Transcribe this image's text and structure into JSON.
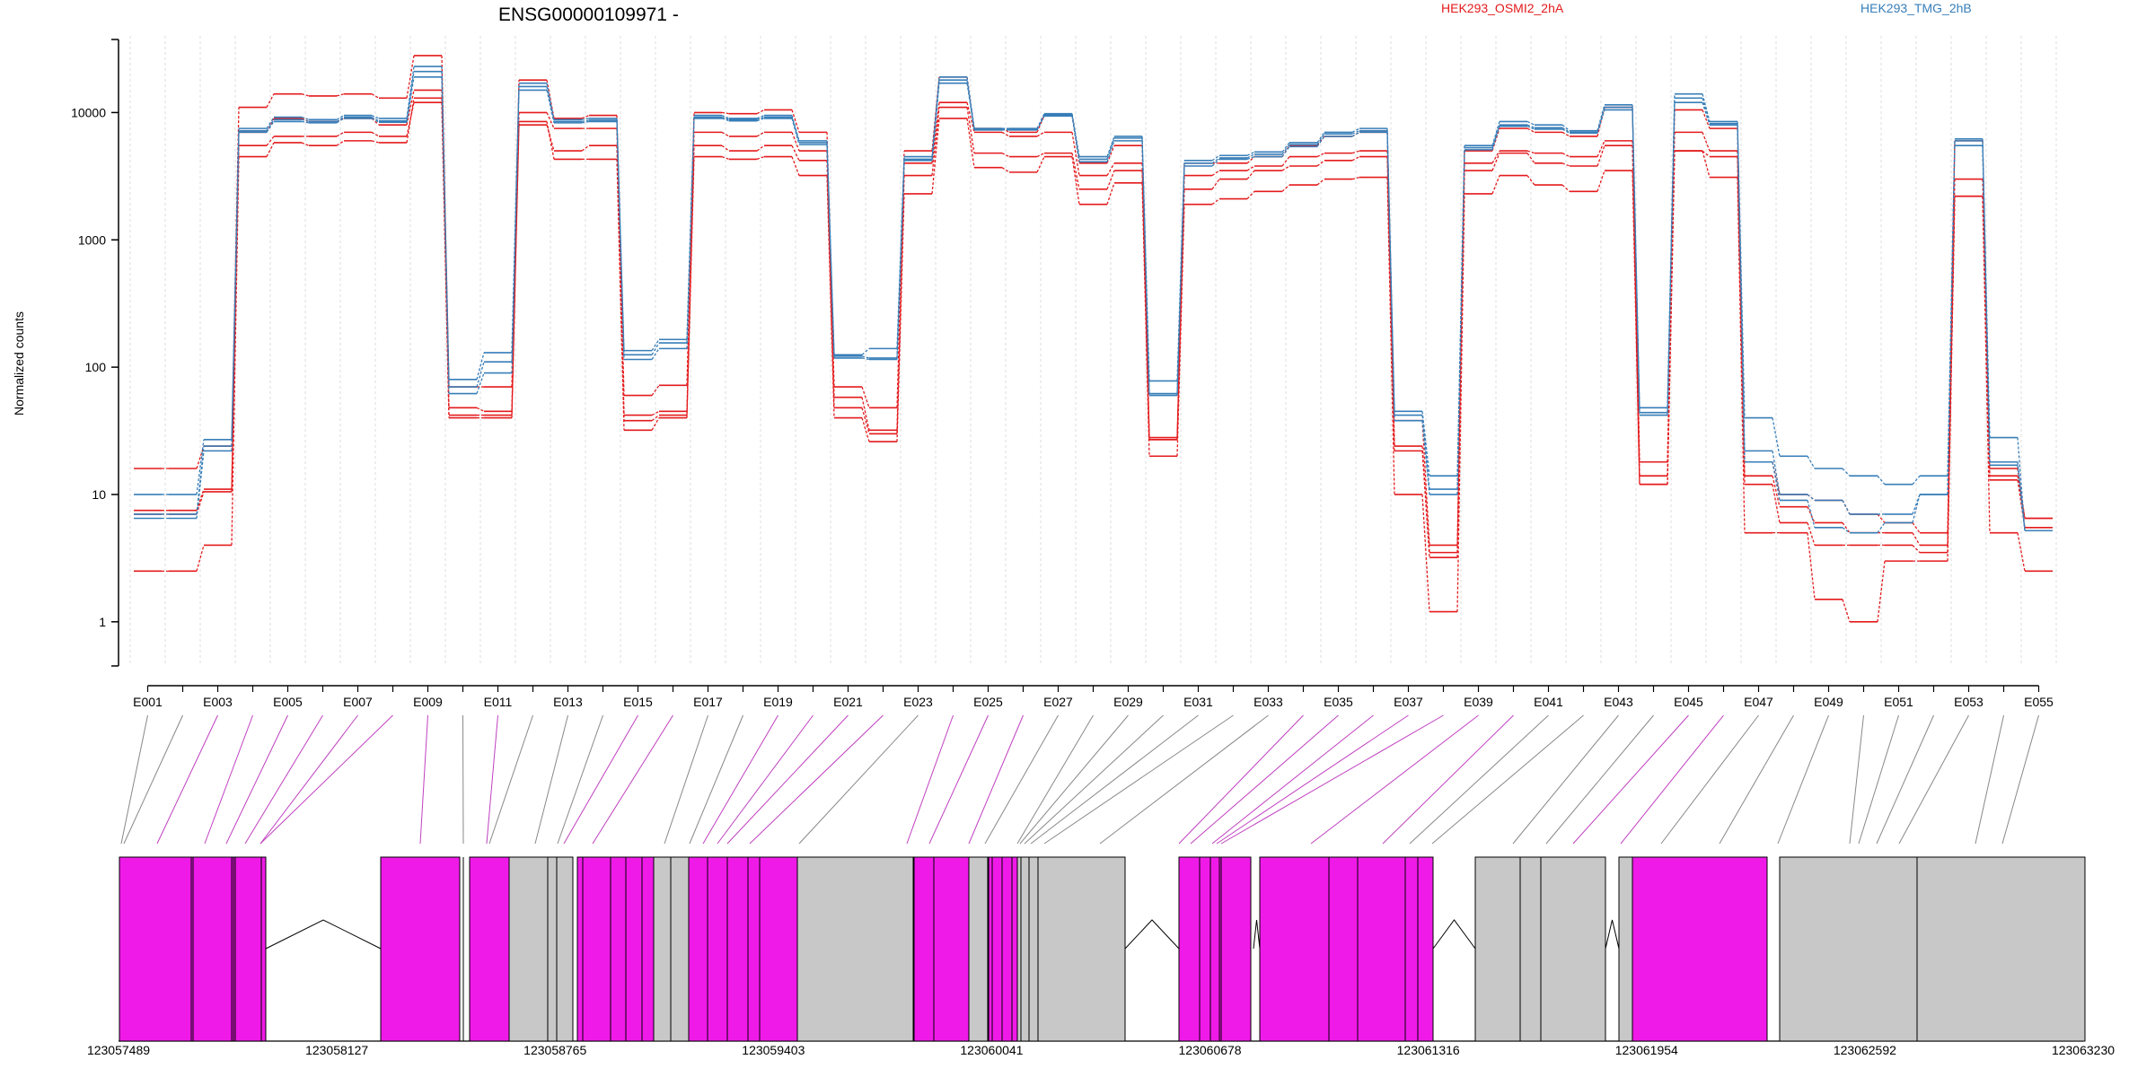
{
  "chart_data": {
    "type": "line",
    "title": "ENSG00000109971 -",
    "xlabel": "",
    "ylabel": "Normalized counts",
    "yscale": "log",
    "y_ticks": [
      1,
      10,
      100,
      1000,
      10000
    ],
    "y_tick_labels": [
      "1",
      "10",
      "100",
      "1000",
      "10000"
    ],
    "ylim": [
      0.45,
      40000
    ],
    "categories": [
      "E001",
      "E002",
      "E003",
      "E004",
      "E005",
      "E006",
      "E007",
      "E008",
      "E009",
      "E010",
      "E011",
      "E012",
      "E013",
      "E014",
      "E015",
      "E016",
      "E017",
      "E018",
      "E019",
      "E020",
      "E021",
      "E022",
      "E023",
      "E024",
      "E025",
      "E026",
      "E027",
      "E028",
      "E029",
      "E030",
      "E031",
      "E032",
      "E033",
      "E034",
      "E035",
      "E036",
      "E037",
      "E038",
      "E039",
      "E040",
      "E041",
      "E042",
      "E043",
      "E044",
      "E045",
      "E046",
      "E047",
      "E048",
      "E049",
      "E050",
      "E051",
      "E052",
      "E053",
      "E054",
      "E055"
    ],
    "x_tick_labels": [
      "E001",
      "E003",
      "E005",
      "E007",
      "E009",
      "E011",
      "E013",
      "E015",
      "E017",
      "E019",
      "E021",
      "E023",
      "E025",
      "E027",
      "E029",
      "E031",
      "E033",
      "E035",
      "E037",
      "E039",
      "E041",
      "E043",
      "E045",
      "E047",
      "E049",
      "E051",
      "E053",
      "E055"
    ],
    "legend": [
      {
        "name": "HEK293_OSMI2_2hA",
        "color": "#e41a1c"
      },
      {
        "name": "HEK293_TMG_2hB",
        "color": "#377eb8"
      }
    ],
    "series": [
      {
        "name": "HEK293_OSMI2_2hA",
        "color": "#e41a1c",
        "values": [
          16,
          16,
          24,
          11000.0,
          14000.0,
          13500.0,
          14000.0,
          13000.0,
          28000.0,
          70,
          70,
          18000.0,
          9000.0,
          9500.0,
          60,
          72,
          10000.0,
          9800.0,
          10500.0,
          7000.0,
          70,
          48,
          5000.0,
          19000.0,
          7500.0,
          7000.0,
          9500.0,
          4000.0,
          5500.0,
          28,
          4000.0,
          4000.0,
          4500.0,
          5500.0,
          6500.0,
          7000.0,
          38,
          4,
          5000.0,
          7500.0,
          7000.0,
          6500.0,
          11000.0,
          18,
          10500.0,
          7500.0,
          18,
          10,
          9,
          7,
          6,
          5,
          6000.0,
          16,
          6.5
        ]
      },
      {
        "name": "HEK293_OSMI2_2hA",
        "color": "#e41a1c",
        "values": [
          7.5,
          7.5,
          11,
          7000.0,
          9000.0,
          8500.0,
          9000.0,
          8000.0,
          15000.0,
          48,
          45,
          10000.0,
          7500.0,
          7500.0,
          42,
          45,
          7000.0,
          6500.0,
          7000.0,
          5000.0,
          58,
          32,
          4000.0,
          12000.0,
          7000.0,
          6500.0,
          7000.0,
          3200.0,
          4000.0,
          27,
          3200.0,
          3500.0,
          3800.0,
          4500.0,
          4800.0,
          5000.0,
          24,
          3.5,
          4000.0,
          5000.0,
          4800.0,
          4500.0,
          6000.0,
          14,
          7000.0,
          5000.0,
          14,
          8,
          6,
          5,
          5,
          4,
          3000.0,
          14,
          6.5
        ]
      },
      {
        "name": "HEK293_OSMI2_2hA",
        "color": "#e41a1c",
        "values": [
          7,
          7,
          10.5,
          5500.0,
          6500.0,
          6500.0,
          7000.0,
          6500.0,
          12000.0,
          42,
          42,
          8000.0,
          5000.0,
          5500.0,
          38,
          42,
          5500.0,
          5000.0,
          5500.0,
          4200.0,
          48,
          30,
          3200.0,
          11000.0,
          4800.0,
          4500.0,
          4800.0,
          2500.0,
          3500.0,
          27,
          2500.0,
          3000.0,
          3500.0,
          3800.0,
          4200.0,
          4500.0,
          22,
          3.2,
          3500.0,
          4800.0,
          4000.0,
          3800.0,
          5500.0,
          12,
          5000.0,
          4500.0,
          12,
          6,
          4,
          4,
          4,
          3.5,
          2200.0,
          13,
          5.5
        ]
      },
      {
        "name": "HEK293_OSMI2_2hA",
        "color": "#e41a1c",
        "values": [
          2.5,
          2.5,
          4,
          4500.0,
          5800.0,
          5500.0,
          6000.0,
          5800.0,
          13000.0,
          40,
          40,
          8500.0,
          4300.0,
          4300.0,
          32,
          40,
          4500.0,
          4300.0,
          4500.0,
          3200.0,
          40,
          26,
          2300.0,
          9000.0,
          3700.0,
          3400.0,
          4500.0,
          1900.0,
          2800.0,
          20,
          1900.0,
          2100.0,
          2400.0,
          2700.0,
          3000.0,
          3100.0,
          10,
          1.2,
          2300.0,
          3200.0,
          2700.0,
          2400.0,
          3500.0,
          12,
          5000.0,
          3100.0,
          5,
          5,
          1.5,
          1,
          3,
          3,
          2200.0,
          5,
          2.5
        ]
      },
      {
        "name": "HEK293_TMG_2hB",
        "color": "#377eb8",
        "values": [
          10,
          10,
          27,
          7500.0,
          9200.0,
          8800.0,
          9500.0,
          9000.0,
          23000.0,
          80,
          130,
          17000.0,
          8800.0,
          9000.0,
          135,
          165,
          9500.0,
          9000.0,
          9500.0,
          6000.0,
          125,
          140,
          4500.0,
          19000.0,
          7500.0,
          7500.0,
          9800.0,
          4500.0,
          6500.0,
          78,
          4200.0,
          4600.0,
          4900.0,
          5800.0,
          7000.0,
          7500.0,
          45,
          14,
          5500.0,
          8500.0,
          8000.0,
          7200.0,
          11500.0,
          48,
          14000.0,
          8500.0,
          40,
          20,
          16,
          14,
          12,
          14,
          6200.0,
          28,
          5.2
        ]
      },
      {
        "name": "HEK293_TMG_2hB",
        "color": "#377eb8",
        "values": [
          7,
          7,
          24,
          7200.0,
          8800.0,
          8500.0,
          9200.0,
          8600.0,
          21000.0,
          70,
          110,
          16000.0,
          8500.0,
          8700.0,
          125,
          155,
          9200.0,
          8800.0,
          9200.0,
          5800.0,
          122,
          118,
          4300.0,
          18000.0,
          7400.0,
          7400.0,
          9600.0,
          4300.0,
          6300.0,
          62,
          4000.0,
          4400.0,
          4700.0,
          5600.0,
          6800.0,
          7200.0,
          42,
          11,
          5300.0,
          8000.0,
          7600.0,
          7000.0,
          11000.0,
          44,
          13000.0,
          8200.0,
          22,
          10,
          9,
          7,
          7,
          10,
          6000.0,
          18,
          5.2
        ]
      },
      {
        "name": "HEK293_TMG_2hB",
        "color": "#377eb8",
        "values": [
          6.5,
          6.5,
          22,
          7000.0,
          8500.0,
          8300.0,
          9000.0,
          8400.0,
          19000.0,
          62,
          90,
          15000.0,
          8300.0,
          8500.0,
          115,
          140,
          9000.0,
          8600.0,
          9000.0,
          5600.0,
          118,
          115,
          4200.0,
          17000.0,
          7300.0,
          7300.0,
          9400.0,
          4100.0,
          6000.0,
          60,
          3800.0,
          4300.0,
          4500.0,
          5400.0,
          6500.0,
          7000.0,
          38,
          10,
          5100.0,
          7800.0,
          7400.0,
          6900.0,
          10500.0,
          42,
          12000.0,
          8000.0,
          18,
          9,
          5.5,
          5,
          6,
          10,
          5500.0,
          17,
          5.2
        ]
      }
    ],
    "exon_connectors": [
      {
        "exon": "E001",
        "color": "gray"
      },
      {
        "exon": "E002",
        "color": "gray"
      },
      {
        "exon": "E003",
        "color": "magenta"
      },
      {
        "exon": "E004",
        "color": "magenta"
      },
      {
        "exon": "E005",
        "color": "magenta"
      },
      {
        "exon": "E006",
        "color": "magenta"
      },
      {
        "exon": "E007",
        "color": "magenta"
      },
      {
        "exon": "E008",
        "color": "magenta"
      },
      {
        "exon": "E009",
        "color": "magenta"
      },
      {
        "exon": "E010",
        "color": "gray"
      },
      {
        "exon": "E011",
        "color": "magenta"
      },
      {
        "exon": "E012",
        "color": "gray"
      },
      {
        "exon": "E013",
        "color": "gray"
      },
      {
        "exon": "E014",
        "color": "gray"
      },
      {
        "exon": "E015",
        "color": "magenta"
      },
      {
        "exon": "E016",
        "color": "magenta"
      },
      {
        "exon": "E017",
        "color": "gray"
      },
      {
        "exon": "E018",
        "color": "gray"
      },
      {
        "exon": "E019",
        "color": "magenta"
      },
      {
        "exon": "E020",
        "color": "magenta"
      },
      {
        "exon": "E021",
        "color": "magenta"
      },
      {
        "exon": "E022",
        "color": "magenta"
      },
      {
        "exon": "E023",
        "color": "gray"
      },
      {
        "exon": "E024",
        "color": "magenta"
      },
      {
        "exon": "E025",
        "color": "magenta"
      },
      {
        "exon": "E026",
        "color": "magenta"
      },
      {
        "exon": "E027",
        "color": "gray"
      },
      {
        "exon": "E028",
        "color": "gray"
      },
      {
        "exon": "E029",
        "color": "gray"
      },
      {
        "exon": "E030",
        "color": "gray"
      },
      {
        "exon": "E031",
        "color": "gray"
      },
      {
        "exon": "E032",
        "color": "gray"
      },
      {
        "exon": "E033",
        "color": "gray"
      },
      {
        "exon": "E034",
        "color": "magenta"
      },
      {
        "exon": "E035",
        "color": "magenta"
      },
      {
        "exon": "E036",
        "color": "magenta"
      },
      {
        "exon": "E037",
        "color": "magenta"
      },
      {
        "exon": "E038",
        "color": "magenta"
      },
      {
        "exon": "E039",
        "color": "magenta"
      },
      {
        "exon": "E040",
        "color": "magenta"
      },
      {
        "exon": "E041",
        "color": "gray"
      },
      {
        "exon": "E042",
        "color": "gray"
      },
      {
        "exon": "E043",
        "color": "gray"
      },
      {
        "exon": "E044",
        "color": "gray"
      },
      {
        "exon": "E045",
        "color": "magenta"
      },
      {
        "exon": "E046",
        "color": "magenta"
      },
      {
        "exon": "E047",
        "color": "gray"
      },
      {
        "exon": "E048",
        "color": "gray"
      },
      {
        "exon": "E049",
        "color": "gray"
      },
      {
        "exon": "E050",
        "color": "gray"
      },
      {
        "exon": "E051",
        "color": "gray"
      },
      {
        "exon": "E052",
        "color": "gray"
      },
      {
        "exon": "E053",
        "color": "gray"
      },
      {
        "exon": "E054",
        "color": "gray"
      },
      {
        "exon": "E055",
        "color": "gray"
      }
    ],
    "genomic_coordinates": [
      "123057489",
      "123058127",
      "123058765",
      "123059403",
      "123060041",
      "123060678",
      "123061316",
      "123061954",
      "123062592",
      "123063230"
    ],
    "colors": {
      "magenta": "#f01ae8",
      "gray": "#c8c8c8",
      "connector_gray": "#888888",
      "connector_magenta": "#c040c0"
    }
  }
}
